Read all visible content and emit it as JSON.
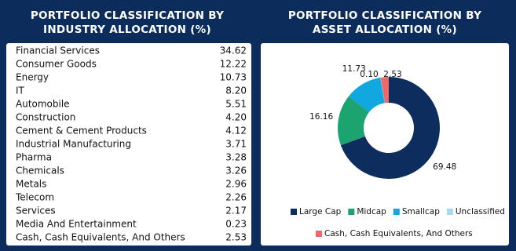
{
  "chart_data": [
    {
      "type": "table",
      "title_lines": [
        "PORTFOLIO CLASSIFICATION BY",
        "INDUSTRY ALLOCATION (%)"
      ],
      "categories": [
        "Financial Services",
        "Consumer Goods",
        "Energy",
        "IT",
        "Automobile",
        "Construction",
        "Cement & Cement Products",
        "Industrial Manufacturing",
        "Pharma",
        "Chemicals",
        "Metals",
        "Telecom",
        "Services",
        "Media And Entertainment",
        "Cash, Cash Equivalents, And Others"
      ],
      "values": [
        34.62,
        12.22,
        10.73,
        8.2,
        5.51,
        4.2,
        4.12,
        3.71,
        3.28,
        3.26,
        2.96,
        2.26,
        2.17,
        0.23,
        2.53
      ],
      "value_labels": [
        "34.62",
        "12.22",
        "10.73",
        "8.20",
        "5.51",
        "4.20",
        "4.12",
        "3.71",
        "3.28",
        "3.26",
        "2.96",
        "2.26",
        "2.17",
        "0.23",
        "2.53"
      ]
    },
    {
      "type": "donut",
      "title_lines": [
        "PORTFOLIO CLASSIFICATION BY",
        "ASSET ALLOCATION (%)"
      ],
      "categories": [
        "Large Cap",
        "Midcap",
        "Smallcap",
        "Unclassified",
        "Cash, Cash Equivalents, And Others"
      ],
      "colors": [
        "#0d2d5e",
        "#1ba46f",
        "#10a8df",
        "#a4daf2",
        "#ee6a6a"
      ],
      "values": [
        69.48,
        16.16,
        11.73,
        0.1,
        2.53
      ],
      "value_labels": [
        "69.48",
        "16.16",
        "11.73",
        "0.10",
        "2.53"
      ]
    }
  ]
}
